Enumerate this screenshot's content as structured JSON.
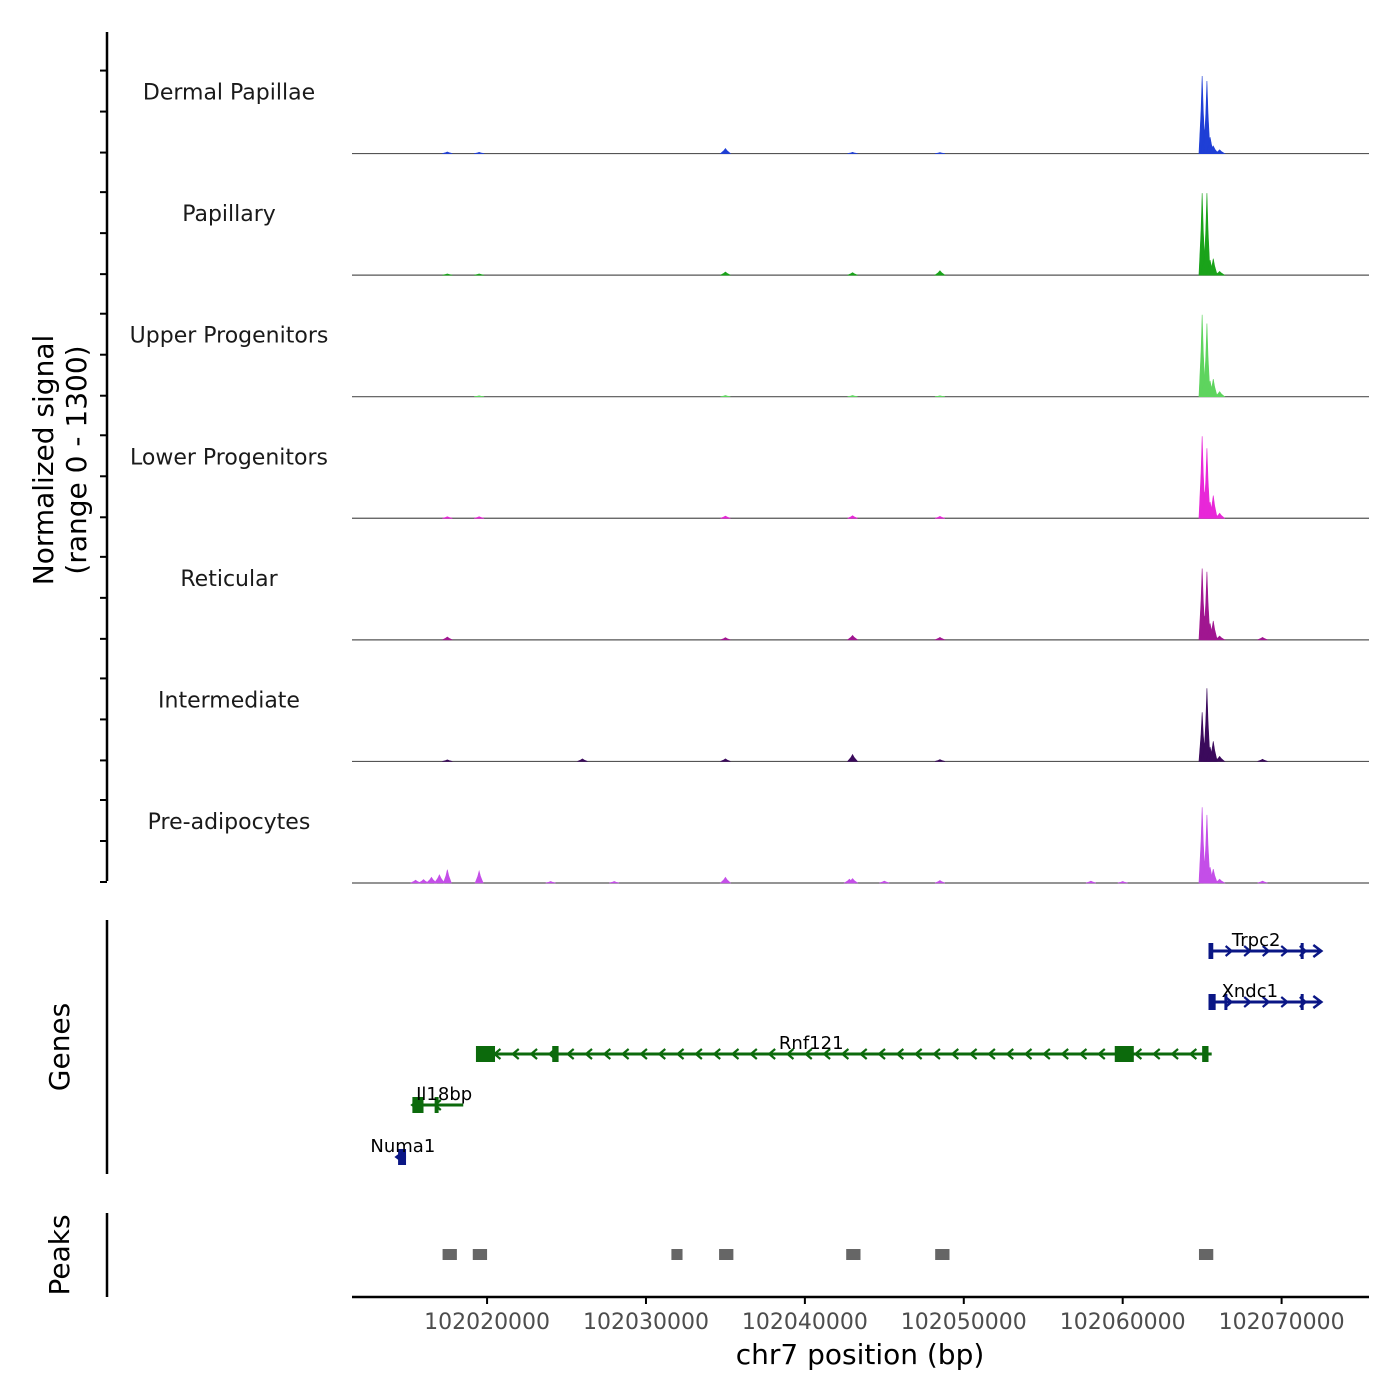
{
  "chart_data": {
    "type": "area",
    "figure": "genome coverage track",
    "y_axis_title_line1": "Normalized signal",
    "y_axis_title_line2": "(range 0 - 1300)",
    "y_range": [
      0,
      1300
    ],
    "genes_label": "Genes",
    "peaks_label": "Peaks",
    "xlabel": "chr7 position (bp)",
    "x_range": [
      102011500,
      102075500
    ],
    "x_ticks": [
      102020000,
      102030000,
      102040000,
      102050000,
      102060000,
      102070000
    ],
    "x_tick_labels": [
      "102020000",
      "102030000",
      "102040000",
      "102050000",
      "102060000",
      "102070000"
    ],
    "tracks": [
      {
        "name": "Dermal Papillae",
        "color": "#1f3fd6",
        "peaks": [
          [
            102065000,
            1230
          ],
          [
            102065150,
            380
          ],
          [
            102065300,
            1150
          ],
          [
            102065500,
            260
          ],
          [
            102065700,
            120
          ],
          [
            102066100,
            60
          ],
          [
            102035000,
            80
          ],
          [
            102017500,
            25
          ],
          [
            102043000,
            20
          ],
          [
            102048500,
            15
          ],
          [
            102019500,
            20
          ]
        ]
      },
      {
        "name": "Papillary",
        "color": "#1aa31a",
        "peaks": [
          [
            102065000,
            1300
          ],
          [
            102065150,
            350
          ],
          [
            102065300,
            1300
          ],
          [
            102065500,
            240
          ],
          [
            102065700,
            260
          ],
          [
            102066100,
            60
          ],
          [
            102048500,
            70
          ],
          [
            102035000,
            50
          ],
          [
            102043000,
            40
          ],
          [
            102017500,
            20
          ],
          [
            102019500,
            20
          ]
        ]
      },
      {
        "name": "Upper Progenitors",
        "color": "#5ed45e",
        "peaks": [
          [
            102065000,
            1300
          ],
          [
            102065150,
            350
          ],
          [
            102065300,
            1160
          ],
          [
            102065500,
            250
          ],
          [
            102065700,
            280
          ],
          [
            102066100,
            80
          ],
          [
            102035000,
            20
          ],
          [
            102043000,
            20
          ],
          [
            102048500,
            15
          ],
          [
            102019500,
            15
          ]
        ]
      },
      {
        "name": "Lower Progenitors",
        "color": "#e827d8",
        "peaks": [
          [
            102065000,
            1300
          ],
          [
            102065150,
            420
          ],
          [
            102065300,
            1110
          ],
          [
            102065500,
            260
          ],
          [
            102065700,
            360
          ],
          [
            102066100,
            80
          ],
          [
            102043000,
            40
          ],
          [
            102035000,
            35
          ],
          [
            102048500,
            30
          ],
          [
            102017500,
            25
          ],
          [
            102019500,
            25
          ]
        ]
      },
      {
        "name": "Reticular",
        "color": "#a01690",
        "peaks": [
          [
            102065000,
            1130
          ],
          [
            102065150,
            380
          ],
          [
            102065300,
            1080
          ],
          [
            102065500,
            260
          ],
          [
            102065700,
            300
          ],
          [
            102066100,
            60
          ],
          [
            102043000,
            70
          ],
          [
            102017500,
            45
          ],
          [
            102048500,
            40
          ],
          [
            102035000,
            35
          ],
          [
            102068800,
            40
          ]
        ]
      },
      {
        "name": "Intermediate",
        "color": "#3b0a5c",
        "peaks": [
          [
            102065000,
            780
          ],
          [
            102065150,
            300
          ],
          [
            102065300,
            1160
          ],
          [
            102065500,
            230
          ],
          [
            102065700,
            320
          ],
          [
            102066100,
            80
          ],
          [
            102043000,
            110
          ],
          [
            102026000,
            40
          ],
          [
            102035000,
            40
          ],
          [
            102048500,
            30
          ],
          [
            102068800,
            35
          ],
          [
            102017500,
            25
          ]
        ]
      },
      {
        "name": "Pre-adipocytes",
        "color": "#c44ee8",
        "peaks": [
          [
            102065000,
            1200
          ],
          [
            102065150,
            350
          ],
          [
            102065300,
            1080
          ],
          [
            102065500,
            250
          ],
          [
            102065700,
            220
          ],
          [
            102066100,
            60
          ],
          [
            102017500,
            210
          ],
          [
            102017000,
            130
          ],
          [
            102016500,
            90
          ],
          [
            102019500,
            190
          ],
          [
            102035000,
            90
          ],
          [
            102043000,
            70
          ],
          [
            102042800,
            60
          ],
          [
            102016000,
            55
          ],
          [
            102015500,
            45
          ],
          [
            102048500,
            40
          ],
          [
            102045000,
            30
          ],
          [
            102058000,
            30
          ],
          [
            102024000,
            25
          ],
          [
            102028000,
            25
          ],
          [
            102060000,
            25
          ],
          [
            102068800,
            30
          ]
        ]
      }
    ],
    "genes": [
      {
        "name": "Trpc2",
        "strand": "+",
        "color": "#0a1685",
        "start": 102065500,
        "end": 102072500,
        "exons": [
          [
            102065400,
            102065700
          ],
          [
            102071200,
            102071350
          ]
        ],
        "label_x": 102068400,
        "row": 0
      },
      {
        "name": "Xndc1",
        "strand": "+",
        "color": "#0a1685",
        "start": 102065500,
        "end": 102072500,
        "exons": [
          [
            102065400,
            102065850
          ],
          [
            102066400,
            102066550
          ],
          [
            102071200,
            102071350
          ]
        ],
        "label_x": 102068000,
        "row": 1
      },
      {
        "name": "Rnf121",
        "strand": "-",
        "color": "#0c6a0c",
        "start": 102019500,
        "end": 102065600,
        "exons": [
          [
            102019300,
            102020500
          ],
          [
            102024100,
            102024500
          ],
          [
            102059500,
            102060700
          ],
          [
            102065000,
            102065400
          ]
        ],
        "label_x": 102040400,
        "row": 2
      },
      {
        "name": "Il18bp",
        "strand": "-",
        "color": "#0c6a0c",
        "start": 102015300,
        "end": 102018500,
        "exons": [
          [
            102015300,
            102016000
          ],
          [
            102016700,
            102016950
          ]
        ],
        "label_x": 102017300,
        "row": 3
      },
      {
        "name": "Numa1",
        "strand": "-",
        "color": "#0a1685",
        "start": 102014300,
        "end": 102014900,
        "exons": [
          [
            102014400,
            102014900
          ]
        ],
        "label_x": 102014700,
        "row": 4
      }
    ],
    "peaks": [
      [
        102017200,
        102018100
      ],
      [
        102019100,
        102020000
      ],
      [
        102031600,
        102032300
      ],
      [
        102034600,
        102035500
      ],
      [
        102042600,
        102043500
      ],
      [
        102048200,
        102049100
      ],
      [
        102064800,
        102065700
      ]
    ]
  }
}
